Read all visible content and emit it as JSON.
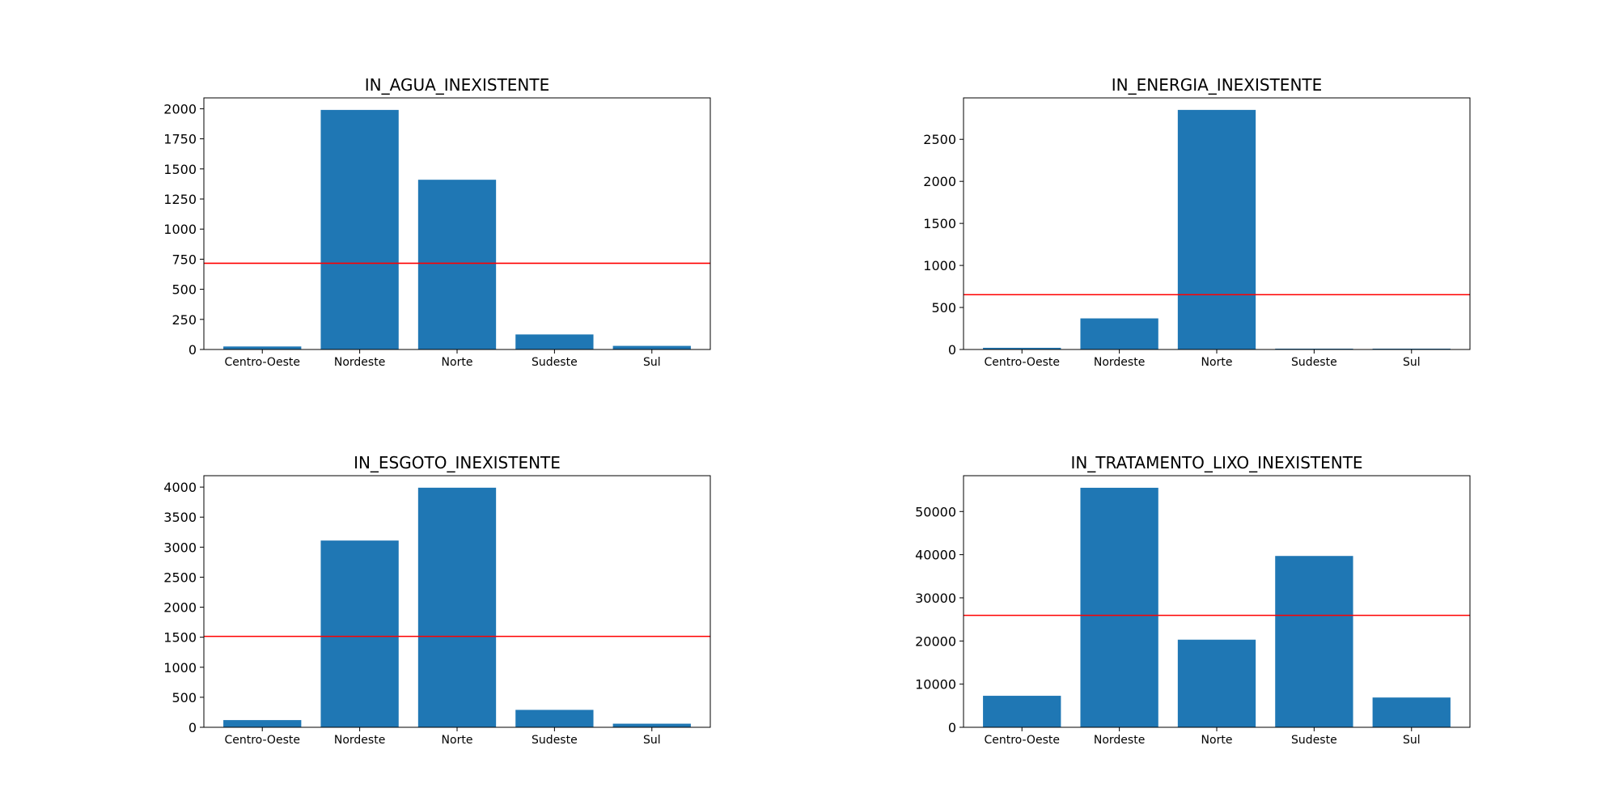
{
  "bar_color": "#1f77b4",
  "reference_line_color": "#ff0000",
  "chart_data": [
    {
      "type": "bar",
      "title": "IN_AGUA_INEXISTENTE",
      "categories": [
        "Centro-Oeste",
        "Nordeste",
        "Norte",
        "Sudeste",
        "Sul"
      ],
      "values": [
        25,
        1990,
        1410,
        125,
        30
      ],
      "ylim": [
        0,
        2090
      ],
      "yticks": [
        0,
        250,
        500,
        750,
        1000,
        1250,
        1500,
        1750,
        2000
      ],
      "reference_line": 716,
      "grid": false,
      "legend": "none"
    },
    {
      "type": "bar",
      "title": "IN_ENERGIA_INEXISTENTE",
      "categories": [
        "Centro-Oeste",
        "Nordeste",
        "Norte",
        "Sudeste",
        "Sul"
      ],
      "values": [
        20,
        370,
        2850,
        10,
        10
      ],
      "ylim": [
        0,
        2993
      ],
      "yticks": [
        0,
        500,
        1000,
        1500,
        2000,
        2500
      ],
      "reference_line": 652,
      "grid": false,
      "legend": "none"
    },
    {
      "type": "bar",
      "title": "IN_ESGOTO_INEXISTENTE",
      "categories": [
        "Centro-Oeste",
        "Nordeste",
        "Norte",
        "Sudeste",
        "Sul"
      ],
      "values": [
        120,
        3110,
        3990,
        290,
        60
      ],
      "ylim": [
        0,
        4190
      ],
      "yticks": [
        0,
        500,
        1000,
        1500,
        2000,
        2500,
        3000,
        3500,
        4000
      ],
      "reference_line": 1514,
      "grid": false,
      "legend": "none"
    },
    {
      "type": "bar",
      "title": "IN_TRATAMENTO_LIXO_INEXISTENTE",
      "categories": [
        "Centro-Oeste",
        "Nordeste",
        "Norte",
        "Sudeste",
        "Sul"
      ],
      "values": [
        7300,
        55500,
        20300,
        39700,
        6900
      ],
      "ylim": [
        0,
        58300
      ],
      "yticks": [
        0,
        10000,
        20000,
        30000,
        40000,
        50000
      ],
      "reference_line": 25940,
      "grid": false,
      "legend": "none"
    }
  ]
}
